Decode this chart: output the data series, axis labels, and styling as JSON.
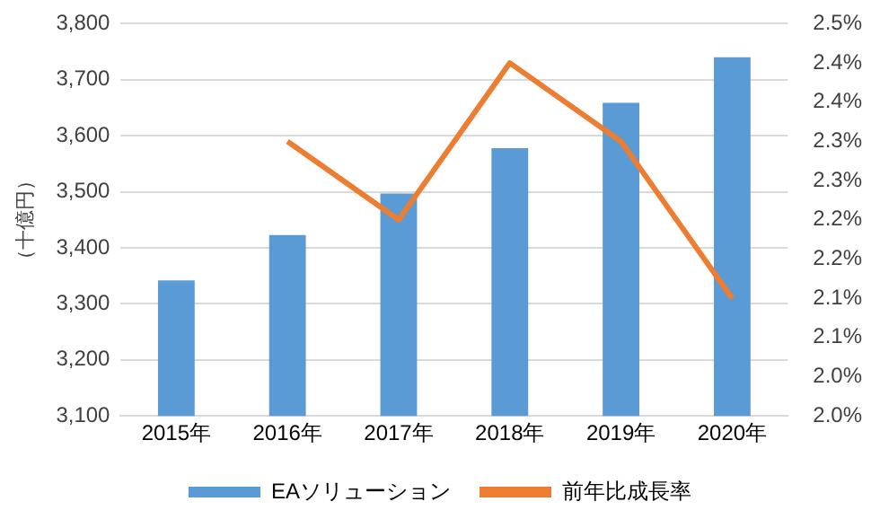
{
  "chart_data": {
    "type": "bar",
    "ylabel": "（十億円）",
    "categories": [
      "2015年",
      "2016年",
      "2017年",
      "2018年",
      "2019年",
      "2020年"
    ],
    "series": [
      {
        "name": "EAソリューション",
        "color": "#5b9bd5",
        "values": [
          3342,
          3423,
          3497,
          3578,
          3659,
          3740
        ]
      },
      {
        "name": "前年比成長率",
        "type": "line",
        "axis": "y2",
        "color": "#ed7d31",
        "marker": "none",
        "values": [
          null,
          2.35,
          2.25,
          2.45,
          2.35,
          2.15
        ]
      }
    ],
    "ylim": [
      3100,
      3800
    ],
    "yticks": [
      {
        "value": 3100,
        "label": "3,100"
      },
      {
        "value": 3200,
        "label": "3,200"
      },
      {
        "value": 3300,
        "label": "3,300"
      },
      {
        "value": 3400,
        "label": "3,400"
      },
      {
        "value": 3500,
        "label": "3,500"
      },
      {
        "value": 3600,
        "label": "3,600"
      },
      {
        "value": 3700,
        "label": "3,700"
      },
      {
        "value": 3800,
        "label": "3,800"
      }
    ],
    "y2lim": [
      2.0,
      2.5
    ],
    "y2ticks": [
      {
        "value": 2.0,
        "label": "2.0%"
      },
      {
        "value": 2.05,
        "label": "2.0%"
      },
      {
        "value": 2.1,
        "label": "2.1%"
      },
      {
        "value": 2.15,
        "label": "2.1%"
      },
      {
        "value": 2.2,
        "label": "2.2%"
      },
      {
        "value": 2.25,
        "label": "2.2%"
      },
      {
        "value": 2.3,
        "label": "2.3%"
      },
      {
        "value": 2.35,
        "label": "2.3%"
      },
      {
        "value": 2.4,
        "label": "2.4%"
      },
      {
        "value": 2.45,
        "label": "2.4%"
      },
      {
        "value": 2.5,
        "label": "2.5%"
      }
    ],
    "grid": "y",
    "legend": "bottom"
  }
}
